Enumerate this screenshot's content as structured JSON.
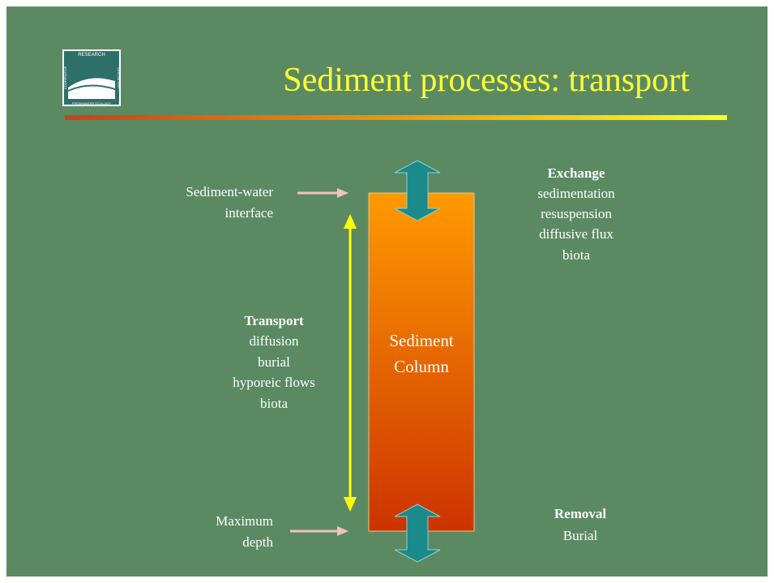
{
  "title": "Sediment processes: transport",
  "logo": {
    "top": "RESEARCH",
    "left": "COOPERATIVE",
    "right": "CENTRE FOR",
    "bottom": "FRESHWATER ECOLOGY"
  },
  "column": [
    "Sediment",
    "Column"
  ],
  "interface_label": [
    "Sediment-water",
    "interface"
  ],
  "depth_label": [
    "Maximum",
    "depth"
  ],
  "transport": {
    "heading": "Transport",
    "items": [
      "diffusion",
      "burial",
      "hyporeic flows",
      "biota"
    ]
  },
  "exchange": {
    "heading": "Exchange",
    "items": [
      "sedimentation",
      "resuspension",
      "diffusive flux",
      "biota"
    ]
  },
  "removal": {
    "heading": "Removal",
    "items": [
      "Burial"
    ]
  }
}
